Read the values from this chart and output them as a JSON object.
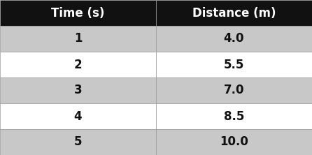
{
  "col_headers": [
    "Time (s)",
    "Distance (m)"
  ],
  "rows": [
    [
      "1",
      "4.0"
    ],
    [
      "2",
      "5.5"
    ],
    [
      "3",
      "7.0"
    ],
    [
      "4",
      "8.5"
    ],
    [
      "5",
      "10.0"
    ]
  ],
  "header_bg": "#111111",
  "header_fg": "#ffffff",
  "row_colors": [
    "#c8c8c8",
    "#ffffff",
    "#c8c8c8",
    "#ffffff",
    "#c8c8c8"
  ],
  "cell_text_color": "#111111",
  "divider_color": "#999999",
  "header_fontsize": 12,
  "cell_fontsize": 12,
  "fig_width": 4.46,
  "fig_height": 2.22,
  "col_split": 0.5
}
